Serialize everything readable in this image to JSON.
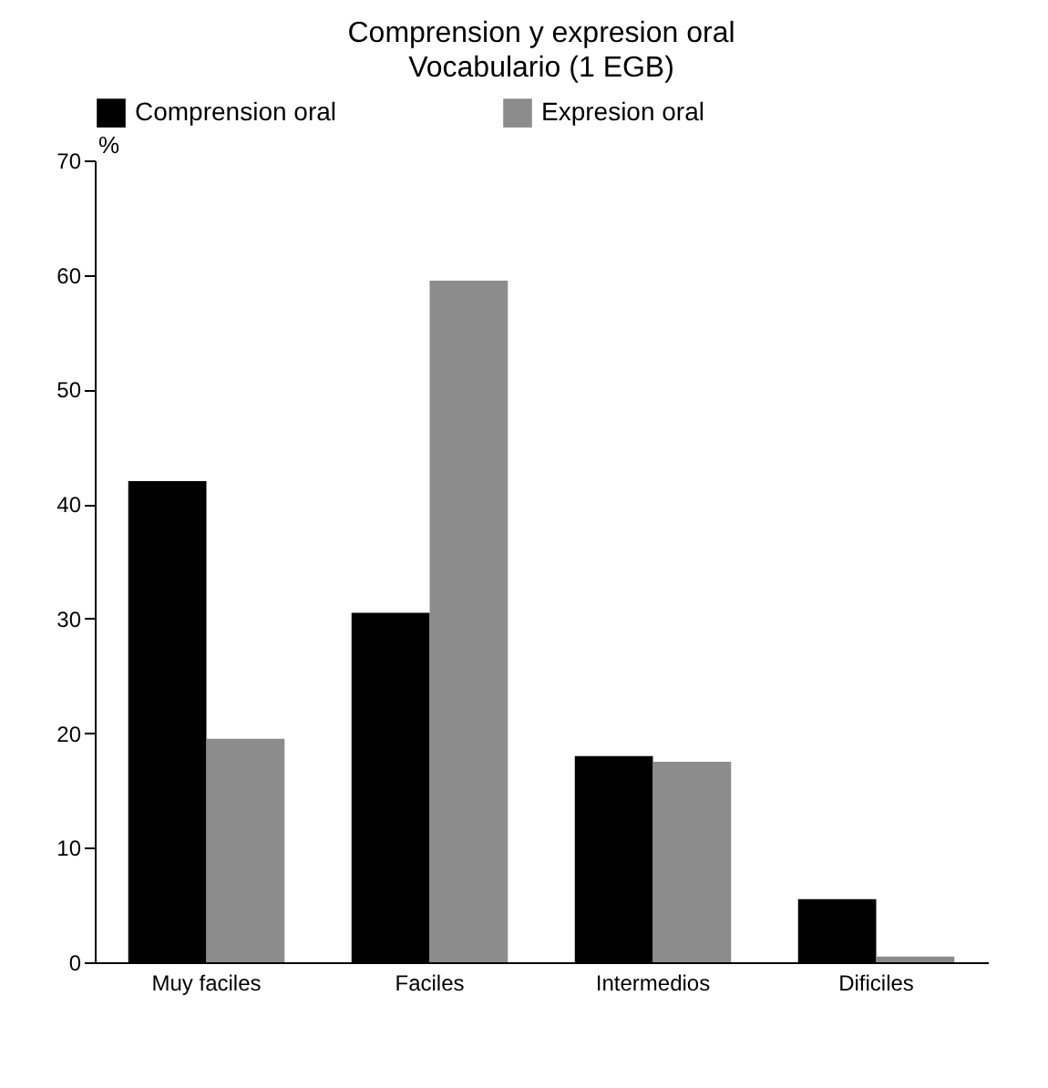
{
  "chart_data": {
    "type": "bar",
    "title": "Comprension y expresion oral",
    "subtitle": "Vocabulario (1 EGB)",
    "ylabel": "%",
    "categories": [
      "Muy faciles",
      "Faciles",
      "Intermedios",
      "Dificiles"
    ],
    "series": [
      {
        "name": "Comprension oral",
        "color": "#000000",
        "values": [
          42,
          30.5,
          18,
          5.5
        ]
      },
      {
        "name": "Expresion oral",
        "color": "#8c8c8c",
        "values": [
          19.5,
          59.5,
          17.5,
          0.5
        ]
      }
    ],
    "ylim": [
      0,
      70
    ],
    "yticks": [
      0,
      10,
      20,
      30,
      40,
      50,
      60,
      70
    ],
    "grid": false,
    "legend": "top"
  }
}
